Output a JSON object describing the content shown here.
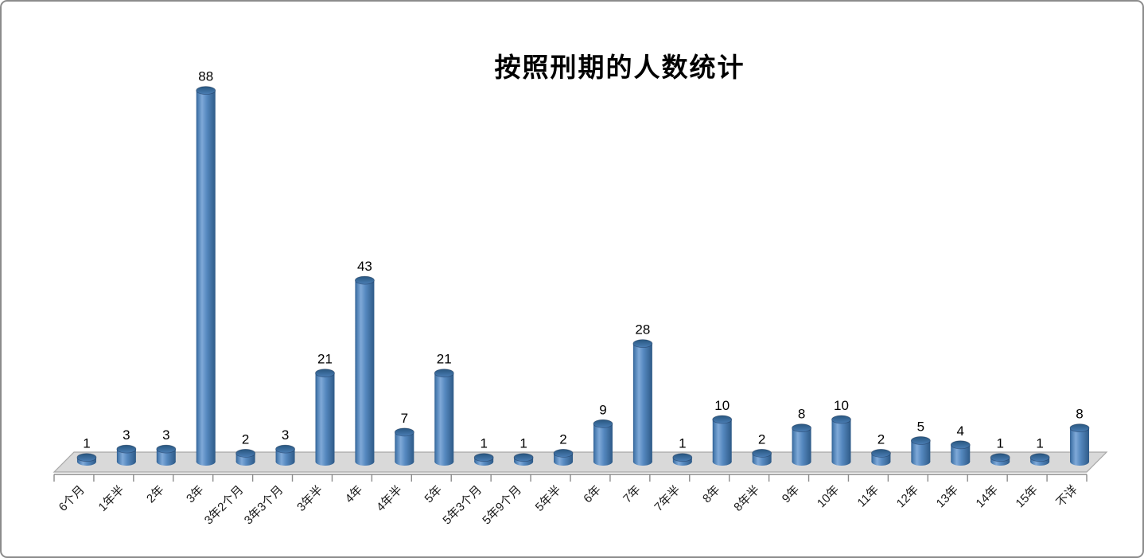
{
  "chart_data": {
    "type": "bar",
    "subtype": "3d-cylinder",
    "title": "按照刑期的人数统计",
    "categories": [
      "6个月",
      "1年半",
      "2年",
      "3年",
      "3年2个月",
      "3年3个月",
      "3年半",
      "4年",
      "4年半",
      "5年",
      "5年3个月",
      "5年9个月",
      "5年半",
      "6年",
      "7年",
      "7年半",
      "8年",
      "8年半",
      "9年",
      "10年",
      "11年",
      "12年",
      "13年",
      "14年",
      "15年",
      "不详"
    ],
    "values": [
      1,
      3,
      3,
      88,
      2,
      3,
      21,
      43,
      7,
      21,
      1,
      1,
      2,
      9,
      28,
      1,
      10,
      2,
      8,
      10,
      2,
      5,
      4,
      1,
      1,
      8
    ],
    "xlabel": "",
    "ylabel": "",
    "ylim": [
      0,
      90
    ],
    "data_labels": true,
    "legend": "none",
    "gridlines": false,
    "x_tick_rotation": -45,
    "colors": {
      "bar": "#4F81BD",
      "bar_edge_dark": "#2E5A87",
      "bar_highlight": "#7FA9D8",
      "bar_left_dark": "#2F5E91",
      "bar_top_dark": "#28567F",
      "bar_top_light": "#4B7EB5",
      "floor": "#D9D9D9",
      "floor_border": "#A6A6A6",
      "axis": "#8C8C8C",
      "label_text": "#000000",
      "category_text": "#1a1a1a",
      "title_text": "#000000",
      "chart_border": "#8C8C8C",
      "background": "#FFFFFF"
    }
  }
}
